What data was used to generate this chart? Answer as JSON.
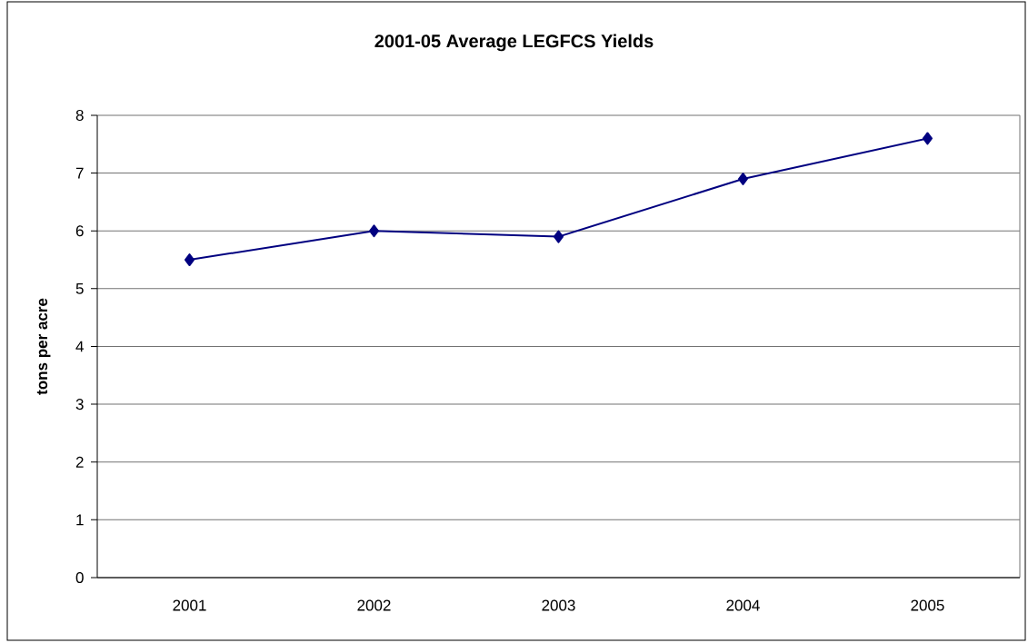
{
  "chart_data": {
    "type": "line",
    "title": "2001-05 Average LEGFCS Yields",
    "ylabel": "tons per acre",
    "categories": [
      "2001",
      "2002",
      "2003",
      "2004",
      "2005"
    ],
    "series": [
      {
        "color": "#000080",
        "values": [
          5.5,
          6.0,
          5.9,
          6.9,
          7.6
        ]
      }
    ],
    "ylim": [
      0,
      8
    ],
    "yticks": [
      0,
      1,
      2,
      3,
      4,
      5,
      6,
      7,
      8
    ],
    "grid": "y",
    "marker": "diamond",
    "line_style": "solid"
  }
}
